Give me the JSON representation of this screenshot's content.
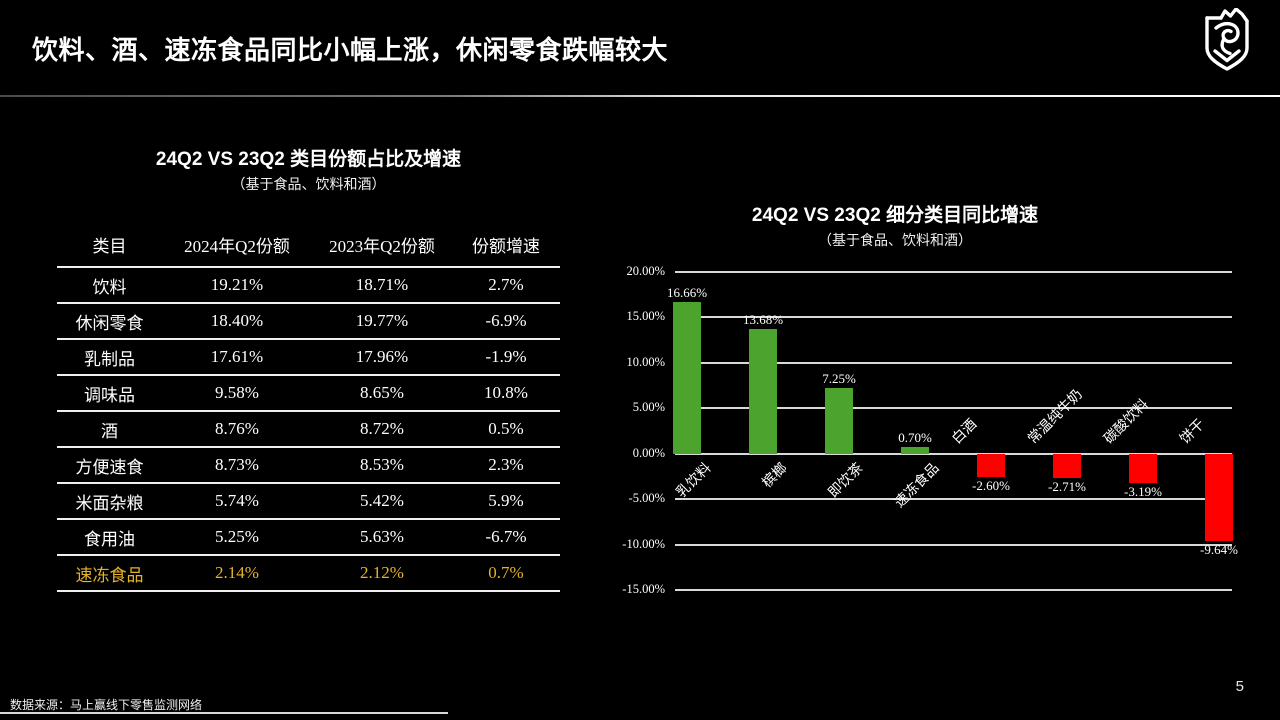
{
  "slide": {
    "title": "饮料、酒、速冻食品同比小幅上涨，休闲零食跌幅较大",
    "page_number": "5",
    "source_note": "数据来源：马上赢线下零售监测网络",
    "logo_name": "crown-shield-logo"
  },
  "table": {
    "title": "24Q2 VS 23Q2 类目份额占比及增速",
    "subtitle": "（基于食品、饮料和酒）",
    "headers": [
      "类目",
      "2024年Q2份额",
      "2023年Q2份额",
      "份额增速"
    ],
    "rows": [
      [
        "饮料",
        "19.21%",
        "18.71%",
        "2.7%"
      ],
      [
        "休闲零食",
        "18.40%",
        "19.77%",
        "-6.9%"
      ],
      [
        "乳制品",
        "17.61%",
        "17.96%",
        "-1.9%"
      ],
      [
        "调味品",
        "9.58%",
        "8.65%",
        "10.8%"
      ],
      [
        "酒",
        "8.76%",
        "8.72%",
        "0.5%"
      ],
      [
        "方便速食",
        "8.73%",
        "8.53%",
        "2.3%"
      ],
      [
        "米面杂粮",
        "5.74%",
        "5.42%",
        "5.9%"
      ],
      [
        "食用油",
        "5.25%",
        "5.63%",
        "-6.7%"
      ],
      [
        "速冻食品",
        "2.14%",
        "2.12%",
        "0.7%"
      ]
    ],
    "highlight_row_index": 8,
    "highlight_color": "#E5B32A"
  },
  "chart_data": {
    "type": "bar",
    "title": "24Q2 VS 23Q2 细分类目同比增速",
    "subtitle": "（基于食品、饮料和酒）",
    "categories": [
      "乳饮料",
      "槟榔",
      "即饮茶",
      "速冻食品",
      "白酒",
      "常温纯牛奶",
      "碳酸饮料",
      "饼干"
    ],
    "values": [
      16.66,
      13.68,
      7.25,
      0.7,
      -2.6,
      -2.71,
      -3.19,
      -9.64
    ],
    "value_labels": [
      "16.66%",
      "13.68%",
      "7.25%",
      "0.70%",
      "-2.60%",
      "-2.71%",
      "-3.19%",
      "-9.64%"
    ],
    "xlabel": "",
    "ylabel": "",
    "ylim": [
      -15,
      20
    ],
    "ytick_step": 5,
    "ytick_labels": [
      "20.00%",
      "15.00%",
      "10.00%",
      "5.00%",
      "0.00%",
      "-5.00%",
      "-10.00%",
      "-15.00%"
    ],
    "grid": true,
    "legend": false,
    "positive_color": "#4CA42F",
    "negative_color": "#FF0000",
    "gridline_color": "#D9D9D9"
  },
  "colors": {
    "background": "#000000",
    "text": "#FFFFFF",
    "table_rule": "#F0F0F0"
  }
}
